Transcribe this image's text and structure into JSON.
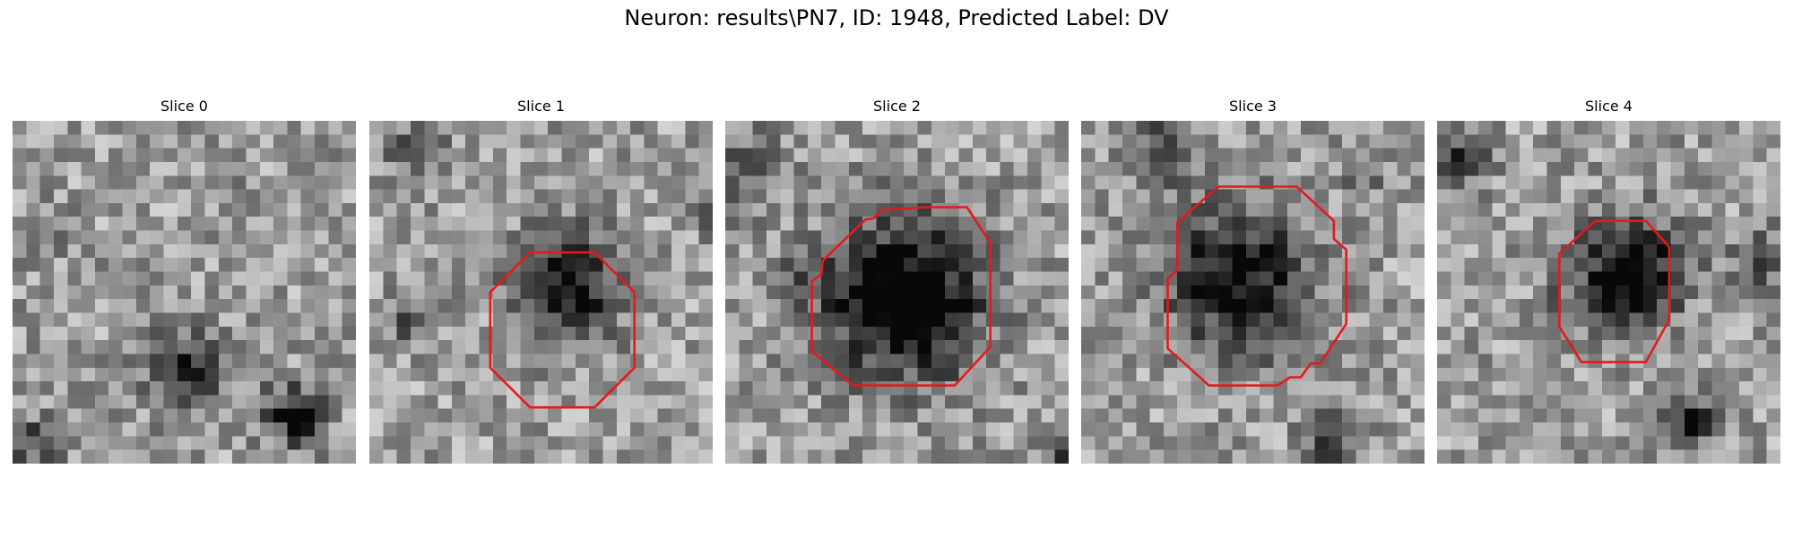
{
  "figure": {
    "title": "Neuron: results\\PN7, ID: 1948, Predicted Label: DV"
  },
  "contour_color": "#e31a1c",
  "panels": [
    {
      "title": "Slice 0",
      "has_contour": false
    },
    {
      "title": "Slice 1",
      "has_contour": true
    },
    {
      "title": "Slice 2",
      "has_contour": true
    },
    {
      "title": "Slice 3",
      "has_contour": true
    },
    {
      "title": "Slice 4",
      "has_contour": true
    }
  ]
}
